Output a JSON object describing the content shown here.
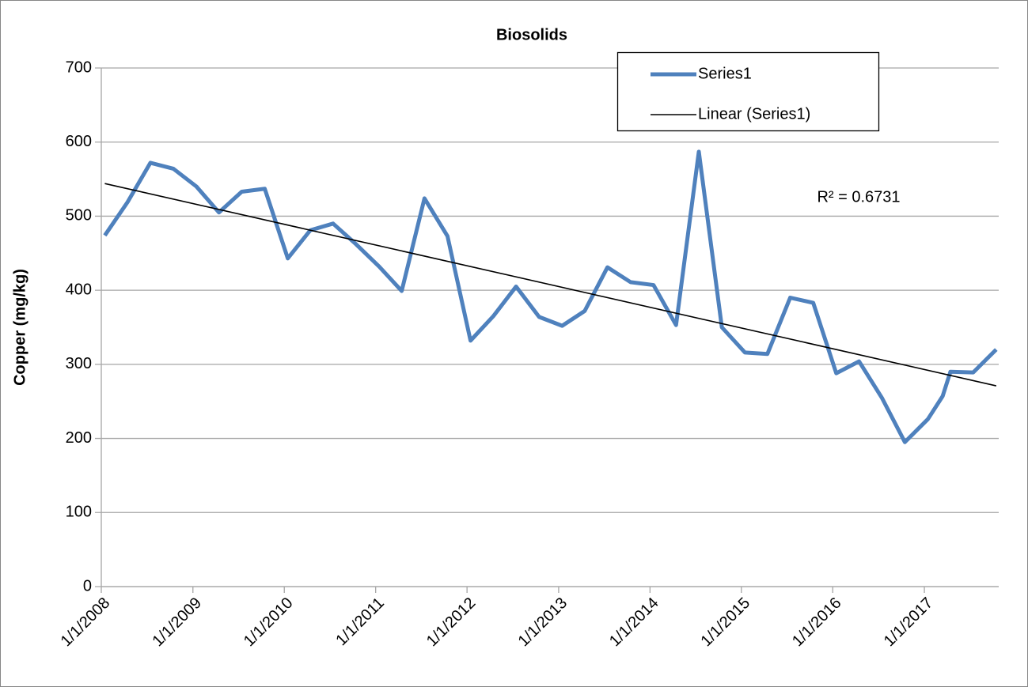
{
  "chart_data": {
    "type": "line",
    "title": "Biosolids",
    "y_label": "Copper (mg/kg)",
    "x": [
      "2008-01-15",
      "2008-04-15",
      "2008-07-15",
      "2008-10-15",
      "2009-01-15",
      "2009-04-15",
      "2009-07-15",
      "2009-10-15",
      "2010-01-15",
      "2010-04-15",
      "2010-07-15",
      "2010-10-15",
      "2011-01-15",
      "2011-04-15",
      "2011-07-15",
      "2011-10-15",
      "2012-01-15",
      "2012-04-15",
      "2012-07-15",
      "2012-10-15",
      "2013-01-15",
      "2013-04-15",
      "2013-07-15",
      "2013-10-15",
      "2014-01-15",
      "2014-04-15",
      "2014-07-15",
      "2014-10-15",
      "2015-01-15",
      "2015-04-15",
      "2015-07-15",
      "2015-10-15",
      "2016-01-15",
      "2016-04-15",
      "2016-07-15",
      "2016-10-15",
      "2017-01-15",
      "2017-03-15",
      "2017-04-15",
      "2017-07-15",
      "2017-10-15"
    ],
    "series": [
      {
        "name": "Series1",
        "color": "#4f81bd",
        "values": [
          474,
          519,
          572,
          564,
          540,
          505,
          533,
          537,
          443,
          481,
          490,
          462,
          432,
          399,
          524,
          473,
          332,
          365,
          405,
          364,
          352,
          372,
          431,
          411,
          407,
          353,
          587,
          350,
          316,
          314,
          390,
          383,
          288,
          304,
          255,
          195,
          226,
          257,
          290,
          289,
          320
        ]
      }
    ],
    "trendline": {
      "name": "Linear (Series1)",
      "color": "#000000",
      "x": [
        "2008-01-15",
        "2017-10-15"
      ],
      "values": [
        544,
        271
      ]
    },
    "annotation": "R² = 0.6731",
    "xlim": [
      "2008-01-01",
      "2017-10-25"
    ],
    "xticks": [
      {
        "value": "2008-01-01",
        "label": "1/1/2008"
      },
      {
        "value": "2009-01-01",
        "label": "1/1/2009"
      },
      {
        "value": "2010-01-01",
        "label": "1/1/2010"
      },
      {
        "value": "2011-01-01",
        "label": "1/1/2011"
      },
      {
        "value": "2012-01-01",
        "label": "1/1/2012"
      },
      {
        "value": "2013-01-01",
        "label": "1/1/2013"
      },
      {
        "value": "2014-01-01",
        "label": "1/1/2014"
      },
      {
        "value": "2015-01-01",
        "label": "1/1/2015"
      },
      {
        "value": "2016-01-01",
        "label": "1/1/2016"
      },
      {
        "value": "2017-01-01",
        "label": "1/1/2017"
      }
    ],
    "ylim": [
      0,
      700
    ],
    "yticks": [
      0,
      100,
      200,
      300,
      400,
      500,
      600,
      700
    ],
    "grid": true,
    "legend": "top-right"
  }
}
